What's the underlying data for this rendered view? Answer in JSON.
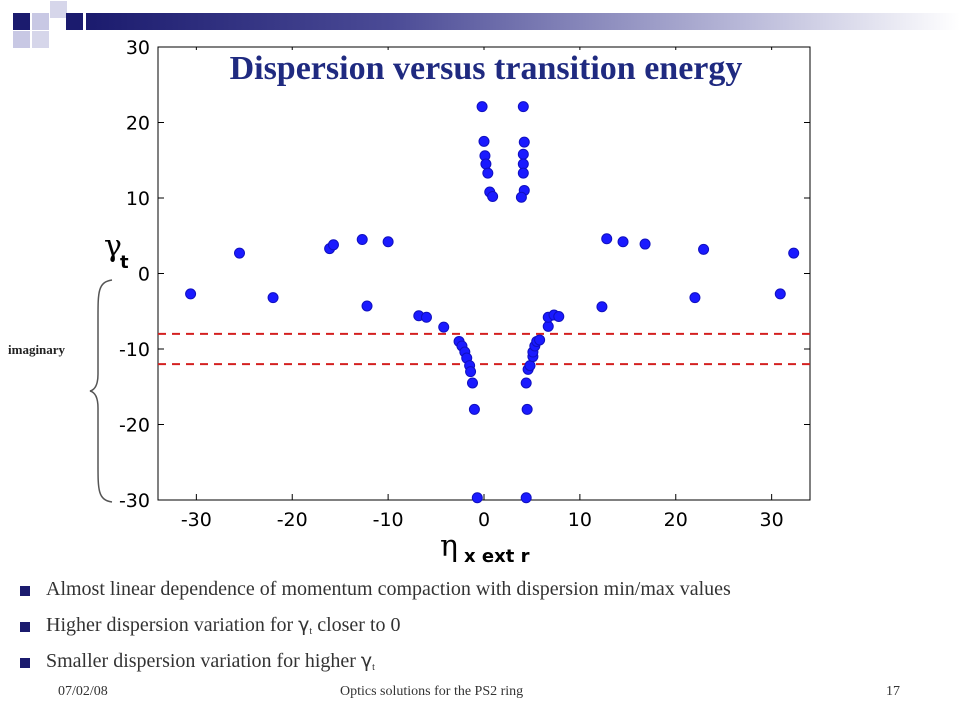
{
  "slide": {
    "title": "Dispersion versus transition energy",
    "imaginary_label": "imaginary",
    "bullets": [
      {
        "pre": "Almost linear dependence of momentum compaction with dispersion min/max values",
        "sym": "",
        "sub": "",
        "post": ""
      },
      {
        "pre": "Higher dispersion variation for ",
        "sym": "γ",
        "sub": "t",
        "post": " closer to 0"
      },
      {
        "pre": "Smaller dispersion variation for higher ",
        "sym": "γ",
        "sub": "t",
        "post": ""
      }
    ],
    "footer_date": "07/02/08",
    "footer_center": "Optics solutions for the PS2 ring",
    "footer_page": "17"
  },
  "colors": {
    "accent": "#1b1b6e",
    "title": "#1f2a80",
    "marker": "#1a1aff",
    "dashed": "#d42020"
  },
  "chart_data": {
    "type": "scatter",
    "title": "Dispersion versus transition energy",
    "xlabel_main": "η",
    "xlabel_sub": "x ext r",
    "ylabel_main": "γ",
    "ylabel_sub": "t",
    "xlim": [
      -34,
      34
    ],
    "ylim": [
      -30,
      30
    ],
    "xticks": [
      -30,
      -20,
      -10,
      0,
      10,
      20,
      30
    ],
    "xtick_labels": [
      "-30",
      "-20",
      "-10",
      "0",
      "10",
      "20",
      "30"
    ],
    "yticks": [
      30,
      20,
      10,
      0,
      -10,
      -20,
      -30
    ],
    "ytick_labels": [
      "30",
      "20",
      "10",
      "0",
      "-10",
      "-20",
      "-30"
    ],
    "reference_lines": [
      -8,
      -12
    ],
    "points": [
      [
        -30.6,
        -2.7
      ],
      [
        -25.5,
        2.7
      ],
      [
        -22,
        -3.2
      ],
      [
        -16.1,
        3.3
      ],
      [
        -15.7,
        3.8
      ],
      [
        -12.7,
        4.5
      ],
      [
        -12.2,
        -4.3
      ],
      [
        -10,
        4.2
      ],
      [
        -6.8,
        -5.6
      ],
      [
        -6,
        -5.8
      ],
      [
        -4.2,
        -7.1
      ],
      [
        -2.6,
        -9
      ],
      [
        -2.3,
        -9.6
      ],
      [
        -2,
        -10.4
      ],
      [
        -1.8,
        -11.2
      ],
      [
        -1.5,
        -12.2
      ],
      [
        -1.4,
        -13
      ],
      [
        -1.2,
        -14.5
      ],
      [
        -1,
        -18
      ],
      [
        -0.7,
        -29.7
      ],
      [
        -0.2,
        22.1
      ],
      [
        0,
        17.5
      ],
      [
        0.1,
        15.6
      ],
      [
        0.2,
        14.5
      ],
      [
        0.4,
        13.3
      ],
      [
        0.6,
        10.8
      ],
      [
        0.9,
        10.2
      ],
      [
        4.1,
        22.1
      ],
      [
        4.2,
        17.4
      ],
      [
        4.1,
        15.8
      ],
      [
        4.1,
        14.5
      ],
      [
        4.1,
        13.3
      ],
      [
        4.2,
        11
      ],
      [
        3.9,
        10.1
      ],
      [
        4.4,
        -29.7
      ],
      [
        4.5,
        -18
      ],
      [
        4.4,
        -14.5
      ],
      [
        4.6,
        -12.7
      ],
      [
        4.8,
        -12.2
      ],
      [
        5.1,
        -11
      ],
      [
        5.1,
        -10.4
      ],
      [
        5.3,
        -9.6
      ],
      [
        5.5,
        -9
      ],
      [
        5.8,
        -8.8
      ],
      [
        6.7,
        -7
      ],
      [
        6.7,
        -5.8
      ],
      [
        7.3,
        -5.5
      ],
      [
        7.8,
        -5.7
      ],
      [
        12.3,
        -4.4
      ],
      [
        12.8,
        4.6
      ],
      [
        14.5,
        4.2
      ],
      [
        16.8,
        3.9
      ],
      [
        22,
        -3.2
      ],
      [
        22.9,
        3.2
      ],
      [
        30.9,
        -2.7
      ],
      [
        32.3,
        2.7
      ]
    ]
  }
}
